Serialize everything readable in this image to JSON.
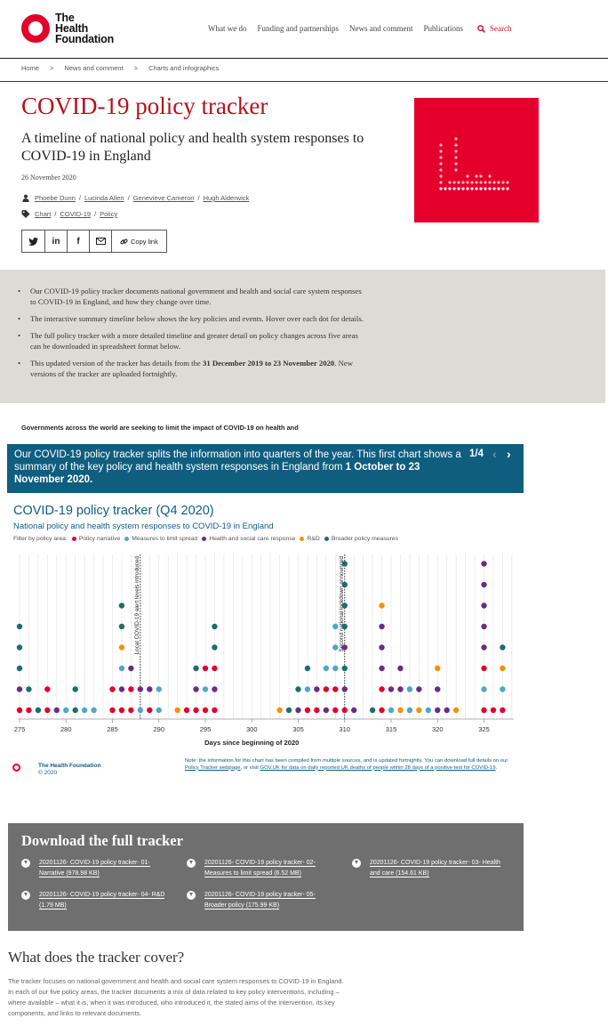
{
  "brand": {
    "name_line1": "The",
    "name_line2": "Health",
    "name_line3": "Foundation",
    "color": "#e4002b"
  },
  "nav": {
    "items": [
      "What we do",
      "Funding and partnerships",
      "News and comment",
      "Publications"
    ],
    "search": "Search"
  },
  "breadcrumb": [
    "Home",
    ">",
    "News and comment",
    ">",
    "Charts and infographics"
  ],
  "page": {
    "title": "COVID-19 policy tracker",
    "subtitle": "A timeline of national policy and health system responses to COVID-19 in England",
    "date": "26 November 2020",
    "authors": [
      "Phoebe Dunn",
      "Lucinda Allen",
      "Genevieve Cameron",
      "Hugh Alderwick"
    ],
    "tags": [
      "Chart",
      "COVID-19",
      "Policy"
    ],
    "share": {
      "twitter": "twitter-icon",
      "linkedin": "in",
      "facebook": "f",
      "email": "email-icon",
      "copy": "Copy link"
    }
  },
  "summary": {
    "b1": "Our COVID-19 policy tracker documents national government and health and social care system responses to COVID-19 in England, and how they change over time.",
    "b2": "The interactive summary timeline below shows the key policies and events. Hover over each dot for details.",
    "b3": "The full policy tracker with a more detailed timeline and greater detail on policy changes across five areas can be downloaded in spreadsheet format below.",
    "b4_pre": "This updated version of the tracker has details from the ",
    "b4_date1": "31 December 2019 to 23 November 2020",
    "b4_post": ". New versions of the tracker are uploaded fortnightly."
  },
  "lead": "Governments across the world are seeking to limit the impact of COVID-19 on health and",
  "banner": {
    "text_pre": "Our COVID-19 policy tracker splits the information into quarters of the year. This first chart shows a summary of the key policy and health system responses in England from ",
    "text_bold": "1 October to 23 November 2020.",
    "counter": "1/4",
    "prev": "‹",
    "next": "›"
  },
  "chart_head": {
    "title": "COVID-19 policy tracker (Q4 2020)",
    "subtitle": "National policy and health system responses to COVID-19 in England",
    "filter_label": "Filter by policy area:"
  },
  "chart_data": {
    "type": "scatter",
    "title": "COVID-19 policy tracker (Q4 2020)",
    "xlabel": "Days since beginning of 2020",
    "xlim": [
      275,
      328
    ],
    "xticks": [
      275,
      280,
      285,
      290,
      295,
      300,
      305,
      310,
      315,
      320,
      325
    ],
    "grid": true,
    "legend_position": "top-left",
    "series": [
      {
        "name": "Policy narrative",
        "color": "#e4002b"
      },
      {
        "name": "Measures to limit spread",
        "color": "#4ea7c8"
      },
      {
        "name": "Health and social care response",
        "color": "#6a2c86"
      },
      {
        "name": "R&D",
        "color": "#f39200"
      },
      {
        "name": "Broader policy measures",
        "color": "#1b6f6a"
      }
    ],
    "annotations": [
      {
        "x": 288,
        "label": "Local COVID-19 alert levels introduced"
      },
      {
        "x": 310,
        "label": "Second national lockdown announced"
      }
    ],
    "stacks": [
      {
        "x": 275,
        "c": [
          "#e4002b",
          "#6a2c86",
          "#1b6f6a",
          "#1b6f6a",
          "#1b6f6a"
        ]
      },
      {
        "x": 276,
        "c": [
          "#e4002b",
          "#1b6f6a"
        ]
      },
      {
        "x": 277,
        "c": [
          "#1b6f6a"
        ]
      },
      {
        "x": 278,
        "c": [
          "#e4002b",
          "#e4002b"
        ]
      },
      {
        "x": 279,
        "c": [
          "#6a2c86"
        ]
      },
      {
        "x": 280,
        "c": [
          "#4ea7c8"
        ]
      },
      {
        "x": 281,
        "c": [
          "#1b6f6a",
          "#1b6f6a"
        ]
      },
      {
        "x": 282,
        "c": [
          "#4ea7c8"
        ]
      },
      {
        "x": 283,
        "c": [
          "#4ea7c8"
        ]
      },
      {
        "x": 285,
        "c": [
          "#e4002b",
          "#e4002b"
        ]
      },
      {
        "x": 286,
        "c": [
          "#e4002b",
          "#6a2c86",
          "#4ea7c8",
          "#f39200",
          "#1b6f6a",
          "#1b6f6a"
        ]
      },
      {
        "x": 287,
        "c": [
          "#e4002b",
          "#e4002b",
          "#6a2c86"
        ]
      },
      {
        "x": 288,
        "c": [
          "#4ea7c8",
          "#6a2c86"
        ]
      },
      {
        "x": 289,
        "c": [
          "#e4002b",
          "#6a2c86"
        ]
      },
      {
        "x": 290,
        "c": [
          "#4ea7c8",
          "#4ea7c8"
        ]
      },
      {
        "x": 292,
        "c": [
          "#f39200"
        ]
      },
      {
        "x": 293,
        "c": [
          "#e4002b"
        ]
      },
      {
        "x": 294,
        "c": [
          "#e4002b",
          "#6a2c86",
          "#1b6f6a"
        ]
      },
      {
        "x": 295,
        "c": [
          "#e4002b",
          "#4ea7c8",
          "#e4002b"
        ]
      },
      {
        "x": 296,
        "c": [
          "#e4002b",
          "#6a2c86",
          "#e4002b",
          "#1b6f6a",
          "#1b6f6a"
        ]
      },
      {
        "x": 303,
        "c": [
          "#f39200"
        ]
      },
      {
        "x": 304,
        "c": [
          "#1b6f6a"
        ]
      },
      {
        "x": 305,
        "c": [
          "#6a2c86",
          "#1b6f6a"
        ]
      },
      {
        "x": 306,
        "c": [
          "#e4002b",
          "#4ea7c8",
          "#1b6f6a"
        ]
      },
      {
        "x": 307,
        "c": [
          "#e4002b",
          "#6a2c86"
        ]
      },
      {
        "x": 308,
        "c": [
          "#6a2c86",
          "#e4002b",
          "#4ea7c8"
        ]
      },
      {
        "x": 309,
        "c": [
          "#e4002b",
          "#e4002b",
          "#4ea7c8",
          "#4ea7c8",
          "#4ea7c8"
        ]
      },
      {
        "x": 310,
        "c": [
          "#e4002b",
          "#6a2c86",
          "#1b6f6a",
          "#6a2c86",
          "#1b6f6a",
          "#1b6f6a",
          "#1b6f6a",
          "#1b6f6a",
          "#1b6f6a"
        ]
      },
      {
        "x": 311,
        "c": [
          "#6a2c86"
        ]
      },
      {
        "x": 313,
        "c": [
          "#1b6f6a"
        ]
      },
      {
        "x": 314,
        "c": [
          "#e4002b",
          "#e4002b",
          "#6a2c86",
          "#6a2c86",
          "#6a2c86",
          "#f39200"
        ]
      },
      {
        "x": 315,
        "c": [
          "#4ea7c8",
          "#6a2c86"
        ]
      },
      {
        "x": 316,
        "c": [
          "#f39200",
          "#6a2c86",
          "#6a2c86"
        ]
      },
      {
        "x": 317,
        "c": [
          "#4ea7c8",
          "#4ea7c8"
        ]
      },
      {
        "x": 318,
        "c": [
          "#f39200",
          "#6a2c86"
        ]
      },
      {
        "x": 319,
        "c": [
          "#4ea7c8"
        ]
      },
      {
        "x": 320,
        "c": [
          "#6a2c86",
          "#6a2c86",
          "#f39200"
        ]
      },
      {
        "x": 321,
        "c": [
          "#6a2c86"
        ]
      },
      {
        "x": 322,
        "c": [
          "#f39200"
        ]
      },
      {
        "x": 325,
        "c": [
          "#e4002b",
          "#4ea7c8",
          "#e4002b",
          "#6a2c86",
          "#6a2c86",
          "#6a2c86",
          "#6a2c86",
          "#6a2c86"
        ]
      },
      {
        "x": 326,
        "c": [
          "#e4002b"
        ]
      },
      {
        "x": 327,
        "c": [
          "#e4002b",
          "#4ea7c8",
          "#f39200",
          "#1b6f6a"
        ]
      }
    ]
  },
  "chart_footer": {
    "org": "The Health Foundation",
    "copyright": "© 2020",
    "note_pre": "Note: the information for this chart has been compiled from multiple sources, and is updated fortnightly. You can download full details on our ",
    "note_link1": "Policy Tracker webpage",
    "note_mid": ", or visit ",
    "note_link2": "GOV.UK for data on daily reported UK deaths of people within 28 days of a positive test for COVID-19",
    "note_end": "."
  },
  "download": {
    "heading": "Download the full tracker",
    "files": [
      "20201126- COVID-19 policy tracker- 01- Narrative (978.98 KB)",
      "20201126- COVID-19 policy tracker- 02- Measures to limit spread (6.52 MB)",
      "20201126- COVID-19 policy tracker- 03- Health and care (154.61 KB)",
      "20201126- COVID-19 policy tracker- 04- R&D (1.79 MB)",
      "20201126- COVID-19 policy tracker- 05- Broader policy (175.99 KB)"
    ]
  },
  "cover": {
    "heading": "What does the tracker cover?",
    "text": "The tracker focuses on national government and health and social care system responses to COVID-19 in England. In each of our five policy areas, the tracker documents a mix of data related to key policy interventions, including – where available – what it is, when it was introduced, who introduced it, the stated aims of the intervention, its key components, and links to relevant documents."
  }
}
